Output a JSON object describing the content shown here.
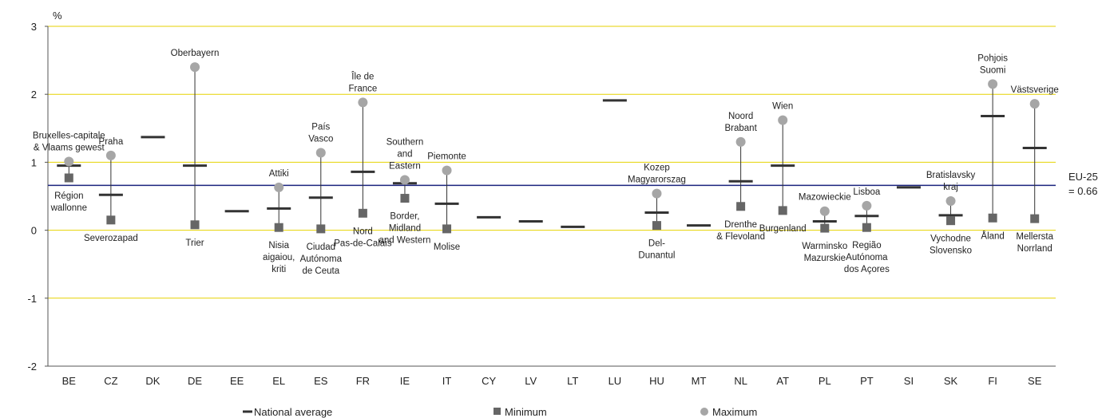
{
  "chart_data": {
    "type": "range-dot",
    "ylabel": "%",
    "ylim": [
      -2,
      3
    ],
    "yticks": [
      "3",
      "2",
      "1",
      "0",
      "-1",
      "-2"
    ],
    "reference_line": {
      "value": 0.66,
      "label_lines": [
        "EU-25",
        "= 0.66"
      ],
      "color": "#1a237e"
    },
    "gridlines_color": "#e6d200",
    "legend": [
      "National average",
      "Minimum",
      "Maximum"
    ],
    "colors": {
      "average": "#333333",
      "minimum": "#666666",
      "maximum": "#a6a6a6",
      "whisker": "#333333"
    },
    "countries": [
      {
        "code": "BE",
        "average": 0.95,
        "min": 0.77,
        "max": 1.01,
        "max_region": [
          "Bruxelles-capitale",
          "& Vlaams gewest"
        ],
        "min_region": [
          "Région",
          "wallonne"
        ]
      },
      {
        "code": "CZ",
        "average": 0.52,
        "min": 0.15,
        "max": 1.1,
        "max_region": [
          "Praha"
        ],
        "min_region": [
          "Severozapad"
        ]
      },
      {
        "code": "DK",
        "average": 1.37
      },
      {
        "code": "DE",
        "average": 0.95,
        "min": 0.08,
        "max": 2.4,
        "max_region": [
          "Oberbayern"
        ],
        "min_region": [
          "Trier"
        ]
      },
      {
        "code": "EE",
        "average": 0.28
      },
      {
        "code": "EL",
        "average": 0.32,
        "min": 0.04,
        "max": 0.63,
        "max_region": [
          "Attiki"
        ],
        "min_region": [
          "Nisia",
          "aigaiou,",
          "kriti"
        ]
      },
      {
        "code": "ES",
        "average": 0.48,
        "min": 0.02,
        "max": 1.14,
        "max_region": [
          "País",
          "Vasco"
        ],
        "min_region": [
          "Ciudad",
          "Autónoma",
          "de Ceuta"
        ]
      },
      {
        "code": "FR",
        "average": 0.86,
        "min": 0.25,
        "max": 1.88,
        "max_region": [
          "Île de",
          "France"
        ],
        "min_region": [
          "Nord",
          "Pas-de-Calais"
        ]
      },
      {
        "code": "IE",
        "average": 0.69,
        "min": 0.47,
        "max": 0.74,
        "max_region": [
          "Southern",
          "and",
          "Eastern"
        ],
        "min_region": [
          "Border,",
          "Midland",
          "and Western"
        ]
      },
      {
        "code": "IT",
        "average": 0.39,
        "min": 0.02,
        "max": 0.88,
        "max_region": [
          "Piemonte"
        ],
        "min_region": [
          "Molise"
        ]
      },
      {
        "code": "CY",
        "average": 0.19
      },
      {
        "code": "LV",
        "average": 0.13
      },
      {
        "code": "LT",
        "average": 0.05
      },
      {
        "code": "LU",
        "average": 1.91
      },
      {
        "code": "HU",
        "average": 0.26,
        "min": 0.07,
        "max": 0.54,
        "max_region": [
          "Kozep",
          "Magyarorszag"
        ],
        "min_region": [
          "Del-",
          "Dunantul"
        ]
      },
      {
        "code": "MT",
        "average": 0.07
      },
      {
        "code": "NL",
        "average": 0.72,
        "min": 0.35,
        "max": 1.3,
        "max_region": [
          "Noord",
          "Brabant"
        ],
        "min_region": [
          "Drenthe",
          "& Flevoland"
        ]
      },
      {
        "code": "AT",
        "average": 0.95,
        "min": 0.29,
        "max": 1.62,
        "max_region": [
          "Wien"
        ],
        "min_region": [
          "Burgenland"
        ]
      },
      {
        "code": "PL",
        "average": 0.13,
        "min": 0.03,
        "max": 0.28,
        "max_region": [
          "Mazowieckie"
        ],
        "min_region": [
          "Warminsko",
          "Mazurskie"
        ]
      },
      {
        "code": "PT",
        "average": 0.21,
        "min": 0.04,
        "max": 0.36,
        "max_region": [
          "Lisboa"
        ],
        "min_region": [
          "Região",
          "Autónoma",
          "dos Açores"
        ]
      },
      {
        "code": "SI",
        "average": 0.63
      },
      {
        "code": "SK",
        "average": 0.22,
        "min": 0.14,
        "max": 0.43,
        "max_region": [
          "Bratislavsky",
          "kraj"
        ],
        "min_region": [
          "Vychodne",
          "Slovensko"
        ]
      },
      {
        "code": "FI",
        "average": 1.68,
        "min": 0.18,
        "max": 2.15,
        "max_region": [
          "Pohjois",
          "Suomi"
        ],
        "min_region": [
          "Åland"
        ]
      },
      {
        "code": "SE",
        "average": 1.21,
        "min": 0.17,
        "max": 1.86,
        "max_region": [
          "Västsverige"
        ],
        "min_region": [
          "Mellersta",
          "Norrland"
        ]
      }
    ]
  }
}
